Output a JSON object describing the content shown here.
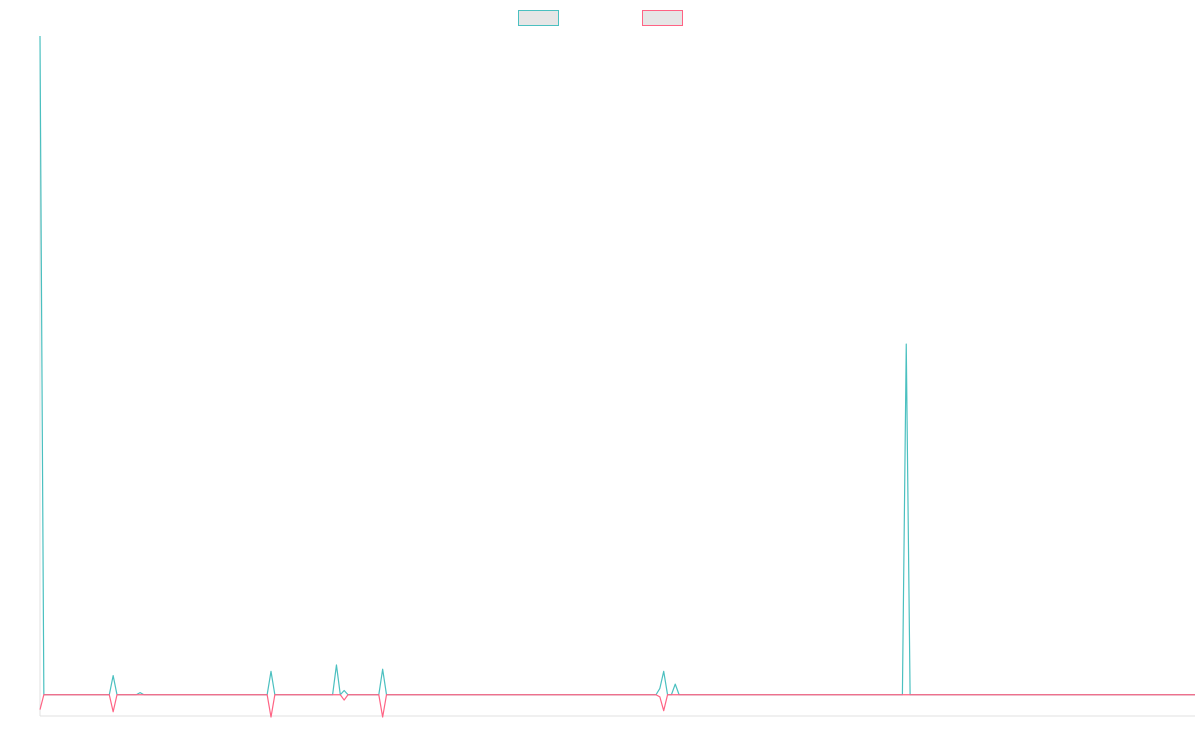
{
  "chart_data": {
    "type": "line",
    "xlim": [
      0,
      300
    ],
    "ylim": [
      -1,
      31
    ],
    "series": [
      {
        "color": "#4bc0c0",
        "x": [
          0,
          1,
          18,
          19,
          20,
          25,
          26,
          27,
          59,
          60,
          61,
          76,
          77,
          78,
          79,
          80,
          88,
          89,
          90,
          160,
          161,
          162,
          163,
          164,
          165,
          166,
          224,
          225,
          226,
          300
        ],
        "values": [
          31,
          0,
          0,
          0.9,
          0,
          0,
          0.1,
          0,
          0,
          1.1,
          0,
          0,
          1.4,
          0,
          0.2,
          0,
          0,
          1.2,
          0,
          0,
          0.3,
          1.1,
          0,
          0,
          0.5,
          0,
          0,
          16.5,
          0,
          0
        ]
      },
      {
        "color": "#ff6384",
        "x": [
          0,
          1,
          18,
          19,
          20,
          59,
          60,
          61,
          78,
          79,
          80,
          88,
          89,
          90,
          160,
          161,
          162,
          163,
          300
        ],
        "values": [
          -0.7,
          0,
          0,
          -0.8,
          0,
          0,
          -1.05,
          0,
          0,
          -0.25,
          0,
          0,
          -1.05,
          0,
          0,
          -0.1,
          -0.75,
          0,
          0
        ]
      }
    ]
  }
}
